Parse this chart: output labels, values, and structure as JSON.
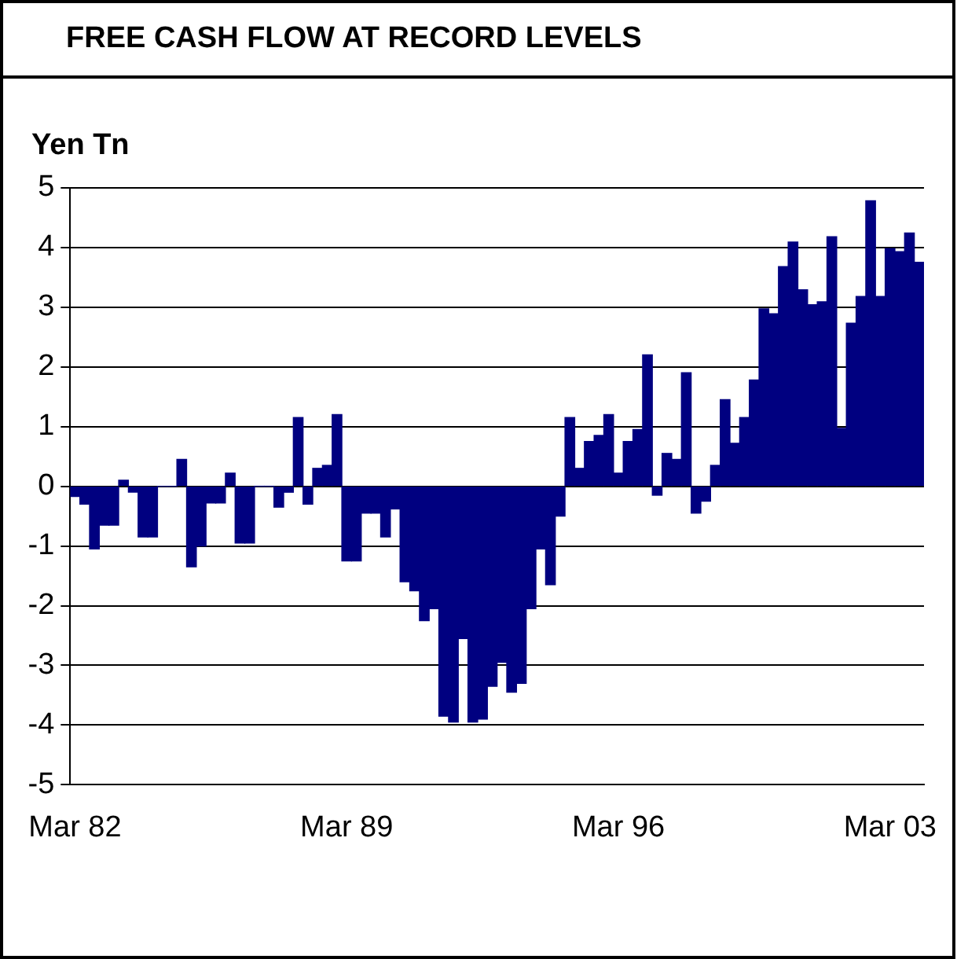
{
  "chart_data": {
    "type": "bar",
    "title": "FREE CASH FLOW AT RECORD LEVELS",
    "ylabel": "Yen Tn",
    "categories": [
      "Mar 82",
      null,
      null,
      null,
      null,
      null,
      null,
      null,
      null,
      null,
      null,
      null,
      null,
      null,
      null,
      null,
      null,
      null,
      null,
      null,
      null,
      null,
      null,
      null,
      null,
      null,
      null,
      null,
      "Mar 89",
      null,
      null,
      null,
      null,
      null,
      null,
      null,
      null,
      null,
      null,
      null,
      null,
      null,
      null,
      null,
      null,
      null,
      null,
      null,
      null,
      null,
      null,
      null,
      null,
      null,
      null,
      null,
      "Mar 96",
      null,
      null,
      null,
      null,
      null,
      null,
      null,
      null,
      null,
      null,
      null,
      null,
      null,
      null,
      null,
      null,
      null,
      null,
      null,
      null,
      null,
      null,
      null,
      null,
      null,
      null,
      null,
      "Mar 03",
      null,
      null,
      null
    ],
    "values": [
      -0.17,
      -0.3,
      -1.05,
      -0.65,
      -0.65,
      0.1,
      -0.1,
      -0.85,
      -0.85,
      0,
      0,
      0.45,
      -1.35,
      -1.0,
      -0.28,
      -0.28,
      0.22,
      -0.95,
      -0.95,
      0,
      0,
      -0.35,
      -0.1,
      1.15,
      -0.3,
      0.3,
      0.35,
      1.2,
      -1.25,
      -1.25,
      -0.45,
      -0.45,
      -0.85,
      -0.38,
      -1.6,
      -1.75,
      -2.25,
      -2.05,
      -3.85,
      -3.95,
      -2.55,
      -3.95,
      -3.9,
      -3.35,
      -2.95,
      -3.45,
      -3.3,
      -2.05,
      -1.05,
      -1.65,
      -0.5,
      1.15,
      0.3,
      0.75,
      0.85,
      1.2,
      0.22,
      0.75,
      0.95,
      2.2,
      -0.15,
      0.55,
      0.45,
      1.9,
      -0.45,
      -0.25,
      0.35,
      1.45,
      0.72,
      1.15,
      1.78,
      2.97,
      2.89,
      3.68,
      4.09,
      3.29,
      3.04,
      3.09,
      4.18,
      0.97,
      2.73,
      3.18,
      4.78,
      3.18,
      3.98,
      3.93,
      4.24,
      3.75
    ],
    "color": "#000080",
    "ylim": [
      -5,
      5
    ],
    "yticks": [
      -5,
      -4,
      -3,
      -2,
      -1,
      0,
      1,
      2,
      3,
      4,
      5
    ],
    "grid": "y",
    "legend": false
  }
}
